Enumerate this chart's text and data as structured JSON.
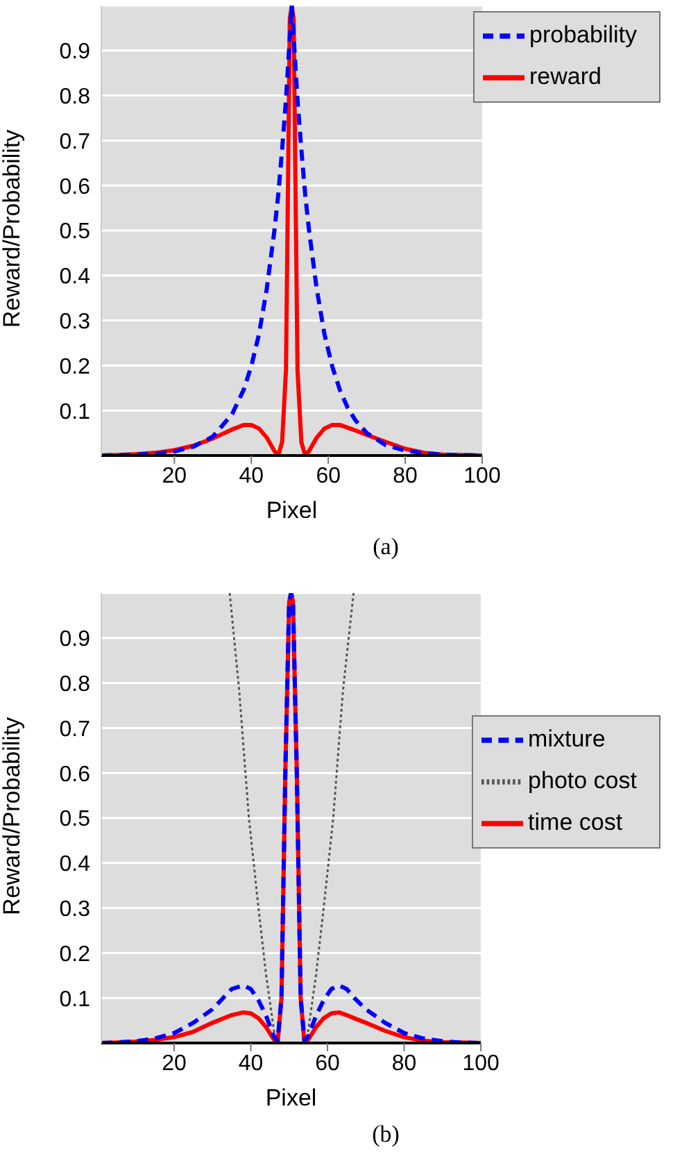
{
  "chart_data": [
    {
      "type": "line",
      "xlabel": "Pixel",
      "ylabel": "Reward/Probability",
      "annotations": [
        "(a)"
      ],
      "xlim": [
        1,
        100
      ],
      "xticks": [
        20,
        40,
        60,
        80,
        100
      ],
      "ylim": [
        0,
        1
      ],
      "yticks": [
        0.1,
        0.2,
        0.3,
        0.4,
        0.5,
        0.6,
        0.7,
        0.8,
        0.9
      ],
      "grid": "y",
      "legend": "top right",
      "marker": "none",
      "series": [
        {
          "name": "reward",
          "color": "#ff0000",
          "line_style": "solid",
          "x": [
            1,
            5,
            10,
            15,
            20,
            25,
            30,
            35,
            38,
            40,
            42,
            44,
            46,
            47,
            48,
            49,
            50,
            50.5,
            51,
            52,
            53,
            54,
            55,
            57,
            59,
            61,
            63,
            65,
            67,
            70,
            75,
            80,
            85,
            90,
            95,
            100
          ],
          "values": [
            0,
            0.001,
            0.003,
            0.006,
            0.012,
            0.022,
            0.038,
            0.058,
            0.068,
            0.068,
            0.06,
            0.04,
            0.01,
            0,
            0.03,
            0.19,
            0.97,
            1,
            0.97,
            0.19,
            0.03,
            0,
            0.01,
            0.04,
            0.06,
            0.068,
            0.068,
            0.062,
            0.056,
            0.046,
            0.03,
            0.015,
            0.006,
            0.002,
            0.001,
            0
          ]
        },
        {
          "name": "probability",
          "color": "#0000ff",
          "line_style": "dashed",
          "x": [
            1,
            5,
            10,
            15,
            20,
            25,
            30,
            35,
            38,
            40,
            42,
            44,
            46,
            47,
            48,
            49,
            50,
            50.5,
            51,
            52,
            53,
            54,
            55,
            57,
            59,
            61,
            63,
            65,
            67,
            70,
            75,
            80,
            85,
            90,
            95,
            100
          ],
          "values": [
            0,
            0.001,
            0.002,
            0.004,
            0.009,
            0.02,
            0.042,
            0.092,
            0.146,
            0.199,
            0.27,
            0.37,
            0.5,
            0.58,
            0.68,
            0.79,
            0.93,
            1,
            0.93,
            0.79,
            0.68,
            0.58,
            0.5,
            0.37,
            0.27,
            0.199,
            0.146,
            0.107,
            0.079,
            0.05,
            0.023,
            0.011,
            0.005,
            0.002,
            0.001,
            0
          ]
        }
      ]
    },
    {
      "type": "line",
      "xlabel": "Pixel",
      "ylabel": "Reward/Probability",
      "annotations": [
        "(b)"
      ],
      "xlim": [
        1,
        100
      ],
      "xticks": [
        20,
        40,
        60,
        80,
        100
      ],
      "ylim": [
        0,
        1
      ],
      "yticks": [
        0.1,
        0.2,
        0.3,
        0.4,
        0.5,
        0.6,
        0.7,
        0.8,
        0.9
      ],
      "grid": "y",
      "legend": "right",
      "marker": "none",
      "series": [
        {
          "name": "time cost",
          "color": "#ff0000",
          "line_style": "solid",
          "x": [
            1,
            5,
            10,
            15,
            20,
            25,
            30,
            35,
            38,
            40,
            42,
            44,
            46,
            47,
            48,
            49,
            50,
            50.5,
            51,
            52,
            53,
            54,
            55,
            57,
            59,
            61,
            63,
            65,
            67,
            70,
            75,
            80,
            85,
            90,
            95,
            100
          ],
          "values": [
            0,
            0.001,
            0.003,
            0.007,
            0.013,
            0.025,
            0.045,
            0.062,
            0.068,
            0.066,
            0.055,
            0.035,
            0.008,
            0,
            0.1,
            0.6,
            0.98,
            1,
            0.98,
            0.6,
            0.1,
            0,
            0.008,
            0.035,
            0.055,
            0.066,
            0.068,
            0.062,
            0.055,
            0.045,
            0.027,
            0.013,
            0.005,
            0.002,
            0.001,
            0
          ]
        },
        {
          "name": "photo cost",
          "color": "#555555",
          "line_style": "dotted",
          "x": [
            34.5,
            37,
            39.5,
            42,
            44,
            46.5,
            47,
            54,
            54.5,
            57,
            59,
            61.5,
            64,
            66.8
          ],
          "values": [
            1,
            0.78,
            0.5,
            0.3,
            0.15,
            0,
            null,
            null,
            0,
            0.15,
            0.3,
            0.5,
            0.78,
            1
          ]
        },
        {
          "name": "mixture",
          "color": "#0000ff",
          "line_style": "dashed",
          "x": [
            1,
            5,
            10,
            15,
            20,
            25,
            30,
            35,
            38,
            40,
            42,
            44,
            46,
            47,
            48,
            49,
            50,
            50.5,
            51,
            52,
            53,
            54,
            55,
            57,
            59,
            61,
            63,
            65,
            67,
            70,
            75,
            80,
            85,
            90,
            95,
            100
          ],
          "values": [
            0,
            0.001,
            0.004,
            0.01,
            0.022,
            0.045,
            0.075,
            0.12,
            0.128,
            0.12,
            0.095,
            0.06,
            0.015,
            0.005,
            0.1,
            0.6,
            0.98,
            1,
            0.98,
            0.6,
            0.1,
            0.005,
            0.015,
            0.06,
            0.095,
            0.12,
            0.128,
            0.12,
            0.1,
            0.075,
            0.045,
            0.022,
            0.01,
            0.004,
            0.001,
            0
          ]
        }
      ]
    }
  ]
}
